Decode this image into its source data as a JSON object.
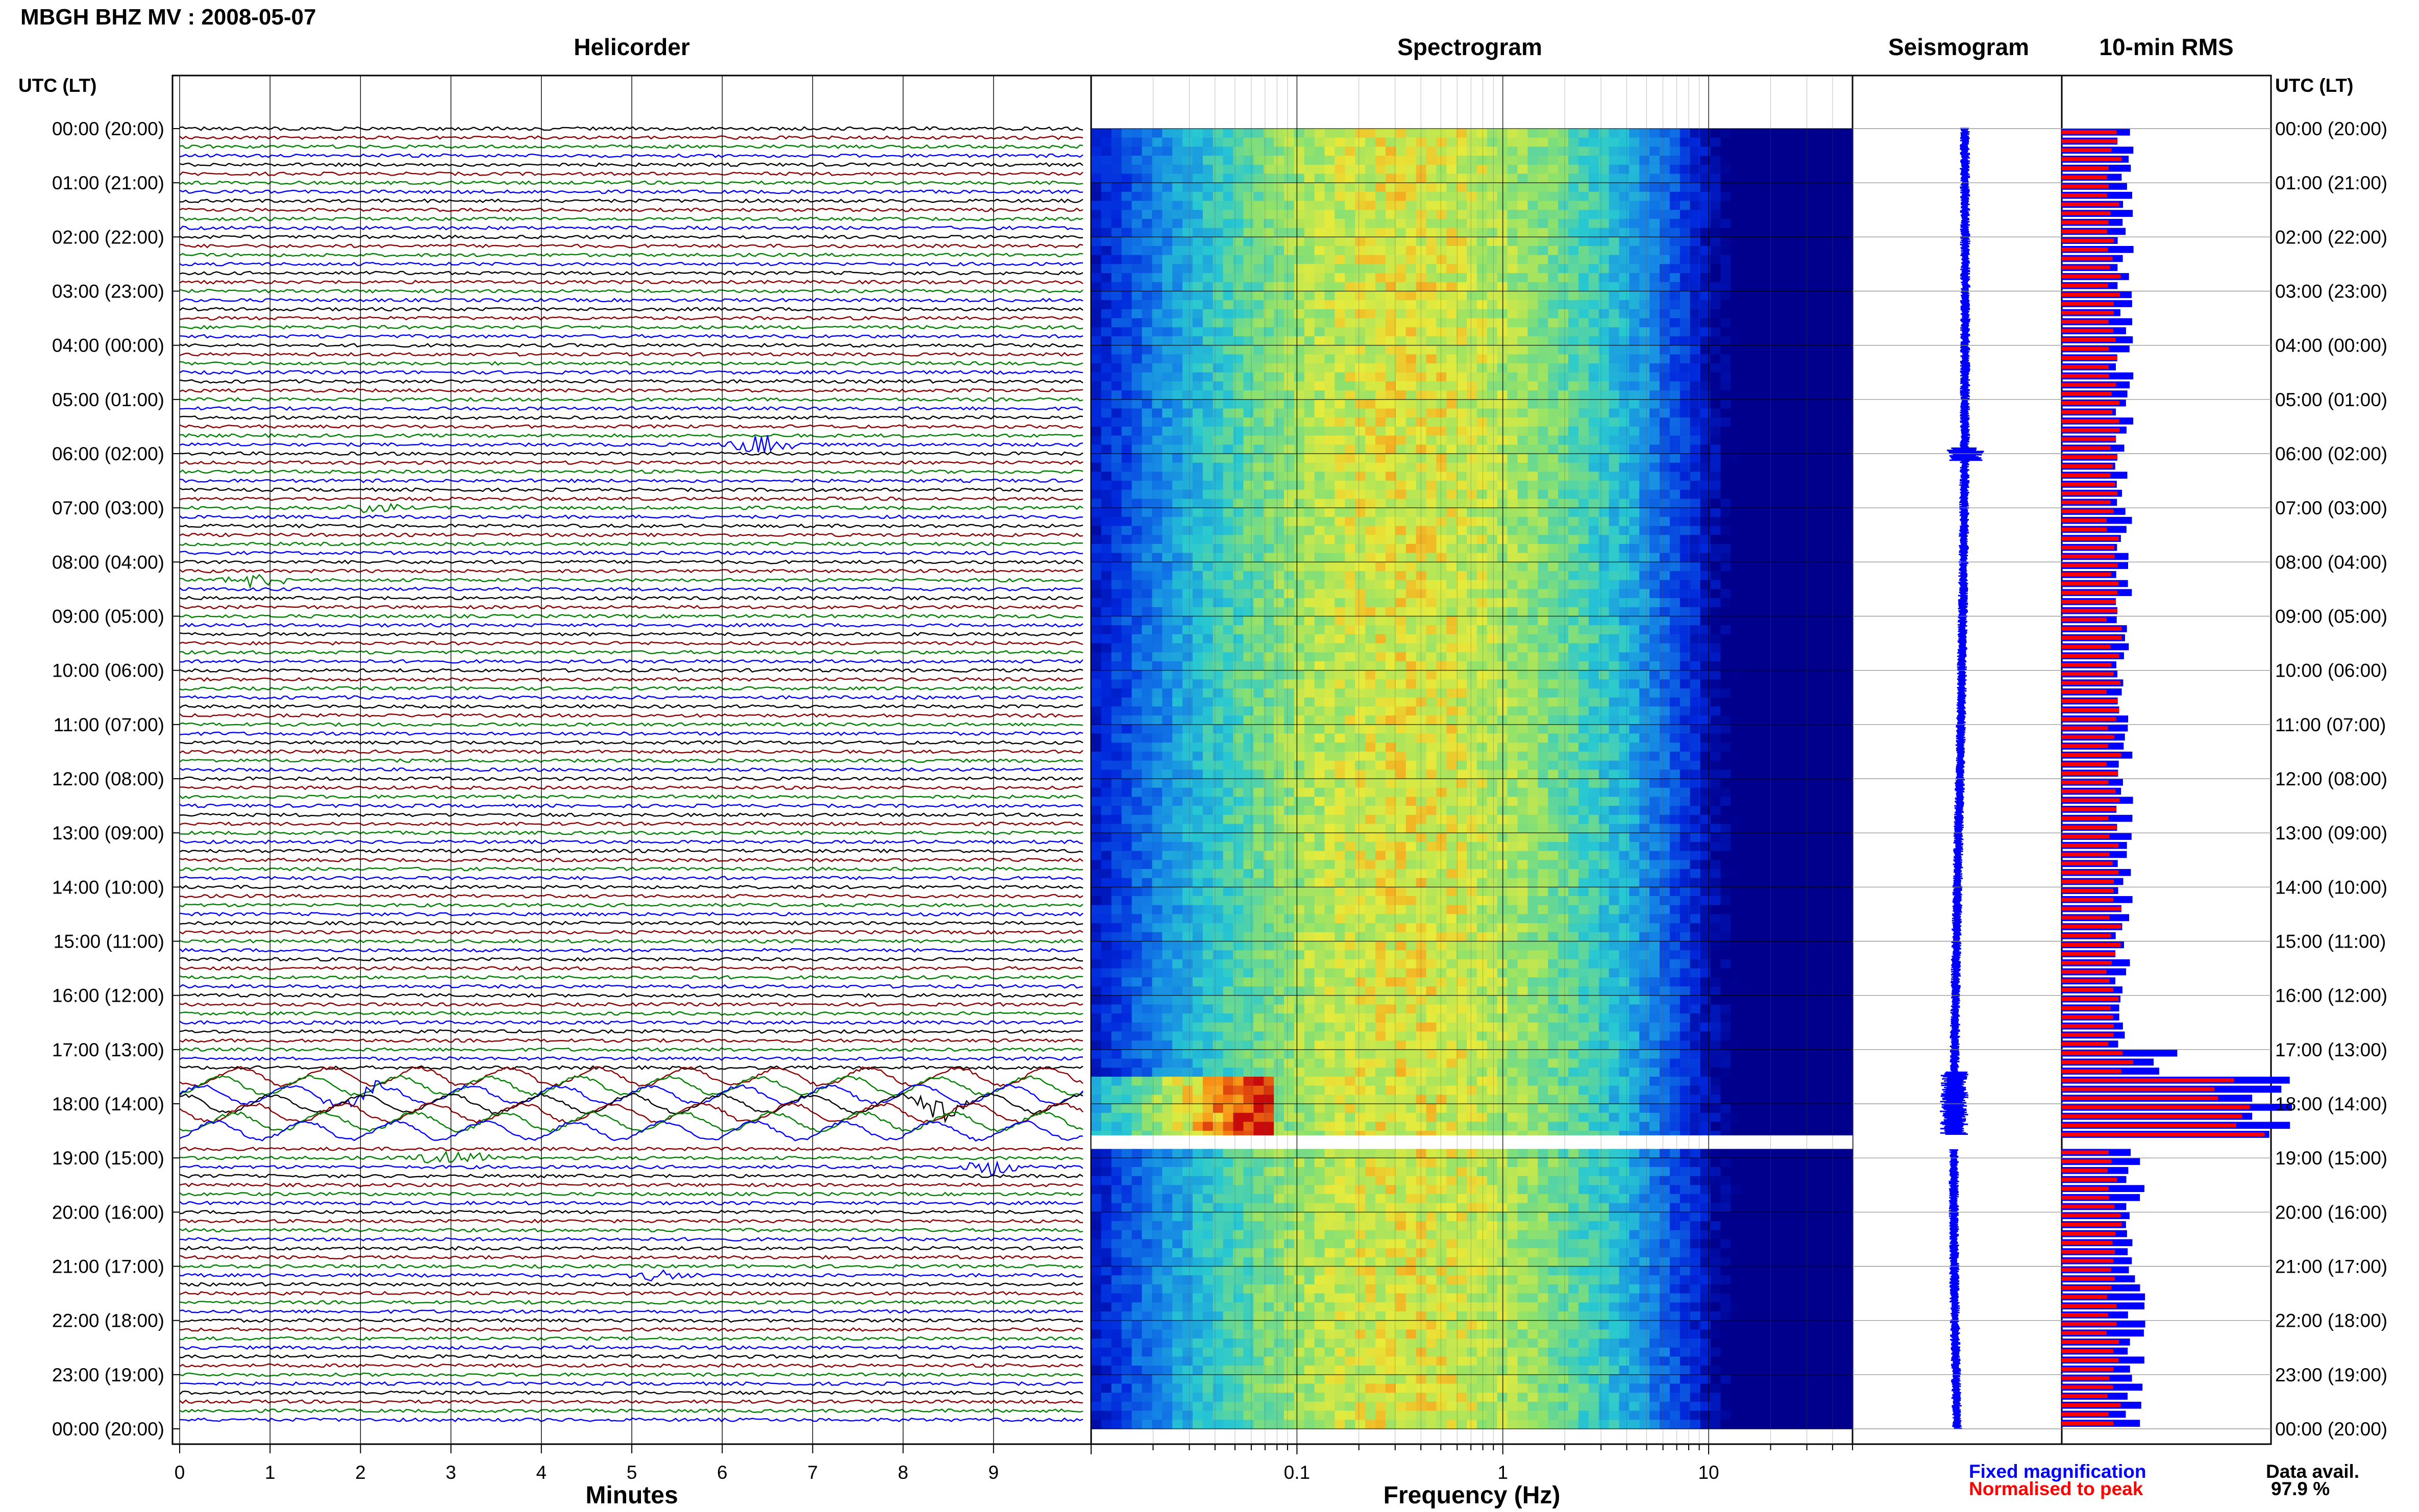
{
  "header": {
    "title": "MBGH BHZ MV : 2008-05-07"
  },
  "panels": {
    "helicorder": "Helicorder",
    "spectrogram": "Spectrogram",
    "seismogram": "Seismogram",
    "rms": "10-min RMS"
  },
  "axes": {
    "left_label": "UTC (LT)",
    "right_label": "UTC (LT)",
    "minutes_label": "Minutes",
    "frequency_label": "Frequency (Hz)"
  },
  "legend": {
    "fixed": "Fixed magnification",
    "normalised": "Normalised to peak",
    "fixed_color": "#0000ff",
    "normalised_color": "#ff0000",
    "data_avail_label": "Data avail.",
    "data_avail_value": "97.9 %"
  },
  "chart_data": {
    "type": "line",
    "time_ticks": [
      "00:00 (20:00)",
      "01:00 (21:00)",
      "02:00 (22:00)",
      "03:00 (23:00)",
      "04:00 (00:00)",
      "05:00 (01:00)",
      "06:00 (02:00)",
      "07:00 (03:00)",
      "08:00 (04:00)",
      "09:00 (05:00)",
      "10:00 (06:00)",
      "11:00 (07:00)",
      "12:00 (08:00)",
      "13:00 (09:00)",
      "14:00 (10:00)",
      "15:00 (11:00)",
      "16:00 (12:00)",
      "17:00 (13:00)",
      "18:00 (14:00)",
      "19:00 (15:00)",
      "20:00 (16:00)",
      "21:00 (17:00)",
      "22:00 (18:00)",
      "23:00 (19:00)",
      "00:00 (20:00)"
    ],
    "minute_ticks": [
      "0",
      "1",
      "2",
      "3",
      "4",
      "5",
      "6",
      "7",
      "8",
      "9"
    ],
    "minutes_range": [
      0,
      10
    ],
    "frequency_ticks": [
      "0.1",
      "1",
      "10"
    ],
    "frequency_range_hz": [
      0.01,
      50
    ],
    "frequency_scale": "log",
    "trace_colors": [
      "#000000",
      "#8b0000",
      "#008000",
      "#0000ff"
    ],
    "data_gap_utc": [
      "18:35",
      "18:50"
    ],
    "events": [
      {
        "utc": "05:50",
        "minute": 6.4,
        "color": "#000000",
        "strength": 1.5
      },
      {
        "utc": "07:00",
        "minute": 2.1,
        "color": "#8b0000",
        "strength": 0.9
      },
      {
        "utc": "08:20",
        "minute": 0.8,
        "color": "#8b0000",
        "strength": 0.9
      },
      {
        "utc": "17:50",
        "minute": 2.0,
        "color": "#0000ff",
        "strength": 1.2
      },
      {
        "utc": "18:00",
        "minute": 8.4,
        "color": "#8b0000",
        "strength": 1.5
      },
      {
        "utc": "19:00",
        "minute": 3.0,
        "color": "#008000",
        "strength": 1.4
      },
      {
        "utc": "19:10",
        "minute": 9.0,
        "color": "#000000",
        "strength": 1.2
      },
      {
        "utc": "21:10",
        "minute": 5.3,
        "color": "#000000",
        "strength": 0.8
      }
    ],
    "rms_blocks": [
      {
        "from": "00:00",
        "to": "17:00",
        "fixed": 0.3,
        "normalised": 0.25
      },
      {
        "from": "17:00",
        "to": "17:30",
        "fixed": 0.5,
        "normalised": 0.3
      },
      {
        "from": "17:30",
        "to": "18:35",
        "fixed": 1.0,
        "normalised": 0.85
      },
      {
        "from": "18:50",
        "to": "24:00",
        "fixed": 0.35,
        "normalised": 0.25
      }
    ]
  }
}
